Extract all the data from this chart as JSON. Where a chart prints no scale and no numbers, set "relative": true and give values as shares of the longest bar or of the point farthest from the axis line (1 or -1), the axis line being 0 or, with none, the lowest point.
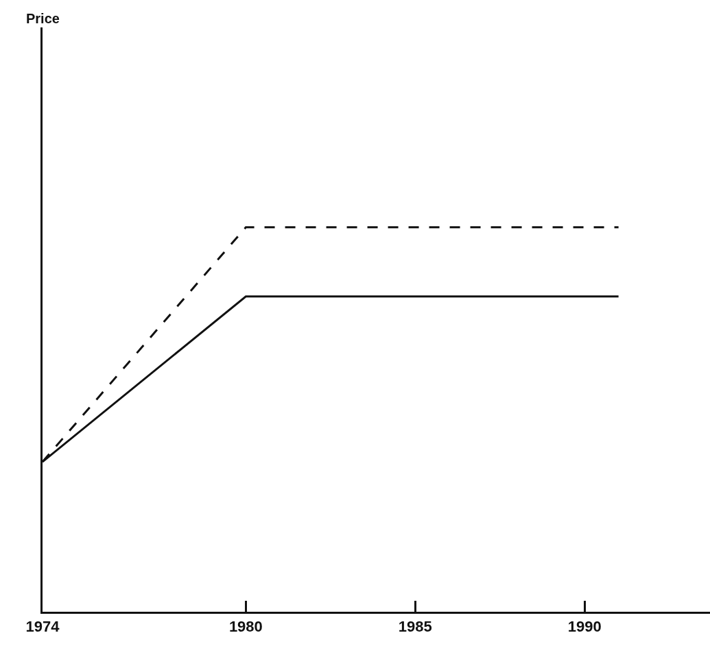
{
  "chart_data": {
    "type": "line",
    "relative": true,
    "annotations": [
      "Price"
    ],
    "xlim": [
      1974,
      1993.7
    ],
    "xticks": [
      1974,
      1980,
      1985,
      1990
    ],
    "marker": "none",
    "series": [
      {
        "color": "#111111",
        "line_style": "dashed",
        "x": [
          1974,
          1980,
          1991
        ],
        "values": [
          0.39,
          1,
          1
        ]
      },
      {
        "color": "#111111",
        "line_style": "solid",
        "x": [
          1974,
          1980,
          1991
        ],
        "values": [
          0.39,
          0.82,
          0.82
        ]
      }
    ]
  }
}
